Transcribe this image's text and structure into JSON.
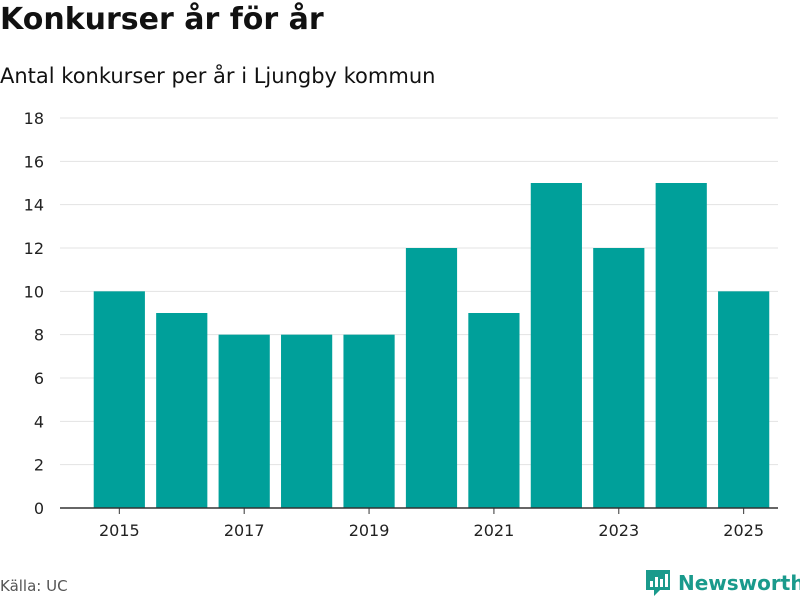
{
  "chart_data": {
    "type": "bar",
    "title": "Konkurser år för år",
    "subtitle": "Antal konkurser per år i Ljungby kommun",
    "categories": [
      2015,
      2016,
      2017,
      2018,
      2019,
      2020,
      2021,
      2022,
      2023,
      2024,
      2025
    ],
    "values": [
      10,
      9,
      8,
      8,
      8,
      12,
      9,
      15,
      12,
      15,
      10
    ],
    "x_tick_labels": [
      "2015",
      "2017",
      "2019",
      "2021",
      "2023",
      "2025"
    ],
    "y_ticks": [
      0,
      2,
      4,
      6,
      8,
      10,
      12,
      14,
      16,
      18
    ],
    "ylim": [
      0,
      18
    ],
    "xlabel": "",
    "ylabel": "",
    "bar_color": "#00a09a",
    "grid": true
  },
  "footer": {
    "source": "Källa: UC",
    "brand": "Newsworthy"
  },
  "colors": {
    "bar": "#00a09a",
    "grid": "#e3e3e3",
    "brand": "#1a9a8c"
  },
  "icons": {
    "brand_logo": "newsworthy-logo-icon"
  }
}
